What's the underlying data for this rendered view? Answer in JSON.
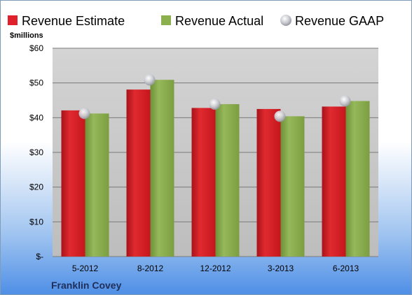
{
  "chart_data": {
    "type": "bar",
    "unit_label": "$millions",
    "company": "Franklin Covey",
    "categories": [
      "5-2012",
      "8-2012",
      "12-2012",
      "3-2013",
      "6-2013"
    ],
    "y_ticks": [
      "$-",
      "$10",
      "$20",
      "$30",
      "$40",
      "$50",
      "$60"
    ],
    "ylim": [
      0,
      60
    ],
    "grid": true,
    "legend_position": "top",
    "series": [
      {
        "name": "Revenue Estimate",
        "type": "bar",
        "color": "#e0202a",
        "values": [
          42.1,
          48.1,
          42.8,
          42.5,
          43.2
        ]
      },
      {
        "name": "Revenue Actual",
        "type": "bar",
        "color": "#8db04f",
        "values": [
          41.2,
          50.9,
          43.9,
          40.4,
          44.8
        ]
      },
      {
        "name": "Revenue GAAP",
        "type": "marker",
        "color": "#c9cbd1",
        "values": [
          41.2,
          50.9,
          43.9,
          40.4,
          44.8
        ]
      }
    ]
  }
}
